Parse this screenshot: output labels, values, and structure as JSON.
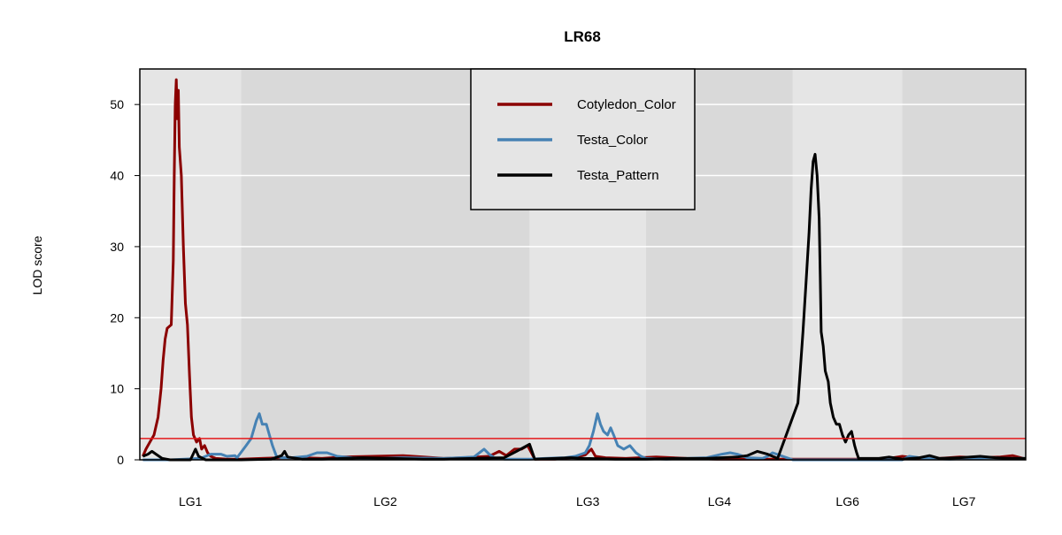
{
  "chart_data": {
    "type": "line",
    "title": "LR68",
    "xlabel": "",
    "ylabel": "LOD score",
    "ylim": [
      0,
      55
    ],
    "yticks": [
      0,
      10,
      20,
      30,
      40,
      50
    ],
    "grid": true,
    "legend_position": "top-center",
    "threshold": {
      "value": 3,
      "color": "#e41a1c"
    },
    "linkage_groups": [
      {
        "label": "LG1",
        "start": 0,
        "end": 100
      },
      {
        "label": "LG2",
        "start": 100,
        "end": 385
      },
      {
        "label": "LG3",
        "start": 385,
        "end": 500
      },
      {
        "label": "LG4",
        "start": 500,
        "end": 645
      },
      {
        "label": "LG6",
        "start": 645,
        "end": 753
      },
      {
        "label": "LG7",
        "start": 753,
        "end": 875
      }
    ],
    "band_colors": [
      "#e5e5e5",
      "#d9d9d9"
    ],
    "series": [
      {
        "name": "Cotyledon_Color",
        "color": "#8b0000",
        "points": [
          [
            3,
            0.5
          ],
          [
            6,
            1.5
          ],
          [
            10,
            2.5
          ],
          [
            14,
            3.5
          ],
          [
            18,
            6
          ],
          [
            21,
            10
          ],
          [
            23,
            14
          ],
          [
            25,
            17
          ],
          [
            27,
            18.5
          ],
          [
            31,
            19
          ],
          [
            33,
            28
          ],
          [
            34,
            40
          ],
          [
            35,
            50
          ],
          [
            36,
            53.5
          ],
          [
            37,
            48
          ],
          [
            38,
            52
          ],
          [
            39,
            44
          ],
          [
            41,
            40
          ],
          [
            43,
            30
          ],
          [
            45,
            22
          ],
          [
            47,
            19
          ],
          [
            49,
            12
          ],
          [
            51,
            6
          ],
          [
            53,
            3.5
          ],
          [
            56,
            2.5
          ],
          [
            59,
            3
          ],
          [
            61,
            1.5
          ],
          [
            64,
            2
          ],
          [
            67,
            1
          ],
          [
            70,
            0.5
          ],
          [
            75,
            0.2
          ],
          [
            85,
            0.1
          ],
          [
            100,
            0.1
          ],
          [
            120,
            0.2
          ],
          [
            140,
            0.3
          ],
          [
            160,
            0.3
          ],
          [
            180,
            0.2
          ],
          [
            200,
            0.4
          ],
          [
            230,
            0.5
          ],
          [
            260,
            0.6
          ],
          [
            280,
            0.4
          ],
          [
            300,
            0.2
          ],
          [
            320,
            0.3
          ],
          [
            345,
            0.5
          ],
          [
            355,
            1.2
          ],
          [
            362,
            0.6
          ],
          [
            370,
            1.5
          ],
          [
            377,
            1.5
          ],
          [
            383,
            2
          ],
          [
            390,
            0.1
          ],
          [
            410,
            0.1
          ],
          [
            425,
            0.3
          ],
          [
            440,
            0.7
          ],
          [
            446,
            1.5
          ],
          [
            450,
            0.5
          ],
          [
            460,
            0.3
          ],
          [
            480,
            0.2
          ],
          [
            510,
            0.4
          ],
          [
            540,
            0.2
          ],
          [
            570,
            0.1
          ],
          [
            600,
            0.1
          ],
          [
            630,
            0.1
          ],
          [
            660,
            0.1
          ],
          [
            690,
            0.1
          ],
          [
            720,
            0.1
          ],
          [
            740,
            0.2
          ],
          [
            753,
            0.5
          ],
          [
            770,
            0.2
          ],
          [
            790,
            0.2
          ],
          [
            810,
            0.4
          ],
          [
            830,
            0.3
          ],
          [
            850,
            0.4
          ],
          [
            862,
            0.6
          ],
          [
            870,
            0.3
          ],
          [
            875,
            0.1
          ]
        ]
      },
      {
        "name": "Testa_Color",
        "color": "#4682b4",
        "points": [
          [
            3,
            0
          ],
          [
            30,
            0
          ],
          [
            60,
            0.2
          ],
          [
            70,
            0.8
          ],
          [
            80,
            0.8
          ],
          [
            86,
            0.5
          ],
          [
            94,
            0.6
          ],
          [
            96,
            0.3
          ],
          [
            105,
            2
          ],
          [
            110,
            3
          ],
          [
            115,
            5.5
          ],
          [
            118,
            6.5
          ],
          [
            121,
            5
          ],
          [
            125,
            5
          ],
          [
            128,
            3.5
          ],
          [
            131,
            2
          ],
          [
            135,
            0.5
          ],
          [
            140,
            0.3
          ],
          [
            150,
            0.3
          ],
          [
            165,
            0.5
          ],
          [
            175,
            1
          ],
          [
            185,
            1
          ],
          [
            195,
            0.5
          ],
          [
            210,
            0.3
          ],
          [
            230,
            0.2
          ],
          [
            260,
            0.3
          ],
          [
            300,
            0.2
          ],
          [
            315,
            0.3
          ],
          [
            330,
            0.4
          ],
          [
            340,
            1.5
          ],
          [
            345,
            0.8
          ],
          [
            350,
            0.3
          ],
          [
            360,
            0.1
          ],
          [
            385,
            0.1
          ],
          [
            400,
            0.2
          ],
          [
            420,
            0.3
          ],
          [
            430,
            0.5
          ],
          [
            440,
            1
          ],
          [
            444,
            2
          ],
          [
            448,
            4
          ],
          [
            452,
            6.5
          ],
          [
            455,
            5
          ],
          [
            458,
            4
          ],
          [
            462,
            3.5
          ],
          [
            465,
            4.5
          ],
          [
            468,
            3.5
          ],
          [
            472,
            2
          ],
          [
            478,
            1.5
          ],
          [
            484,
            2
          ],
          [
            490,
            1
          ],
          [
            495,
            0.5
          ],
          [
            500,
            0.2
          ],
          [
            520,
            0.1
          ],
          [
            560,
            0.3
          ],
          [
            575,
            0.8
          ],
          [
            583,
            1
          ],
          [
            590,
            0.8
          ],
          [
            600,
            0.3
          ],
          [
            615,
            0.2
          ],
          [
            620,
            0.5
          ],
          [
            625,
            1
          ],
          [
            645,
            0
          ],
          [
            700,
            0
          ],
          [
            753,
            0
          ],
          [
            760,
            0.5
          ],
          [
            775,
            0.2
          ],
          [
            800,
            0.1
          ],
          [
            840,
            0.3
          ],
          [
            860,
            0.2
          ],
          [
            875,
            0.2
          ]
        ]
      },
      {
        "name": "Testa_Pattern",
        "color": "#000000",
        "points": [
          [
            3,
            0.5
          ],
          [
            8,
            0.8
          ],
          [
            12,
            1.2
          ],
          [
            16,
            0.8
          ],
          [
            22,
            0.2
          ],
          [
            30,
            0
          ],
          [
            50,
            0
          ],
          [
            55,
            1.5
          ],
          [
            58,
            0.5
          ],
          [
            65,
            0
          ],
          [
            100,
            0
          ],
          [
            130,
            0.1
          ],
          [
            140,
            0.6
          ],
          [
            143,
            1.2
          ],
          [
            146,
            0.4
          ],
          [
            160,
            0.1
          ],
          [
            180,
            0.1
          ],
          [
            200,
            0.2
          ],
          [
            220,
            0.3
          ],
          [
            250,
            0.2
          ],
          [
            280,
            0.1
          ],
          [
            300,
            0.1
          ],
          [
            330,
            0.2
          ],
          [
            360,
            0.3
          ],
          [
            372,
            1.2
          ],
          [
            380,
            1.8
          ],
          [
            385,
            2.2
          ],
          [
            390,
            0.1
          ],
          [
            410,
            0.2
          ],
          [
            425,
            0.3
          ],
          [
            440,
            0.2
          ],
          [
            470,
            0.1
          ],
          [
            500,
            0.1
          ],
          [
            530,
            0.2
          ],
          [
            560,
            0.2
          ],
          [
            590,
            0.4
          ],
          [
            600,
            0.6
          ],
          [
            610,
            1.2
          ],
          [
            620,
            0.8
          ],
          [
            630,
            0.2
          ],
          [
            650,
            8
          ],
          [
            652,
            12
          ],
          [
            655,
            18
          ],
          [
            658,
            25
          ],
          [
            661,
            32
          ],
          [
            663,
            38
          ],
          [
            665,
            42
          ],
          [
            667,
            43
          ],
          [
            669,
            40
          ],
          [
            671,
            34
          ],
          [
            672,
            26
          ],
          [
            673,
            18
          ],
          [
            675,
            16
          ],
          [
            677,
            12.5
          ],
          [
            680,
            11
          ],
          [
            682,
            8
          ],
          [
            685,
            6
          ],
          [
            688,
            5
          ],
          [
            691,
            5
          ],
          [
            694,
            3.5
          ],
          [
            697,
            2.5
          ],
          [
            700,
            3.5
          ],
          [
            703,
            4
          ],
          [
            706,
            2
          ],
          [
            708,
            1
          ],
          [
            710,
            0.2
          ],
          [
            730,
            0.2
          ],
          [
            740,
            0.4
          ],
          [
            753,
            0.1
          ],
          [
            770,
            0.3
          ],
          [
            780,
            0.6
          ],
          [
            790,
            0.2
          ],
          [
            810,
            0.3
          ],
          [
            830,
            0.5
          ],
          [
            845,
            0.3
          ],
          [
            860,
            0.2
          ],
          [
            875,
            0.2
          ]
        ]
      }
    ]
  }
}
